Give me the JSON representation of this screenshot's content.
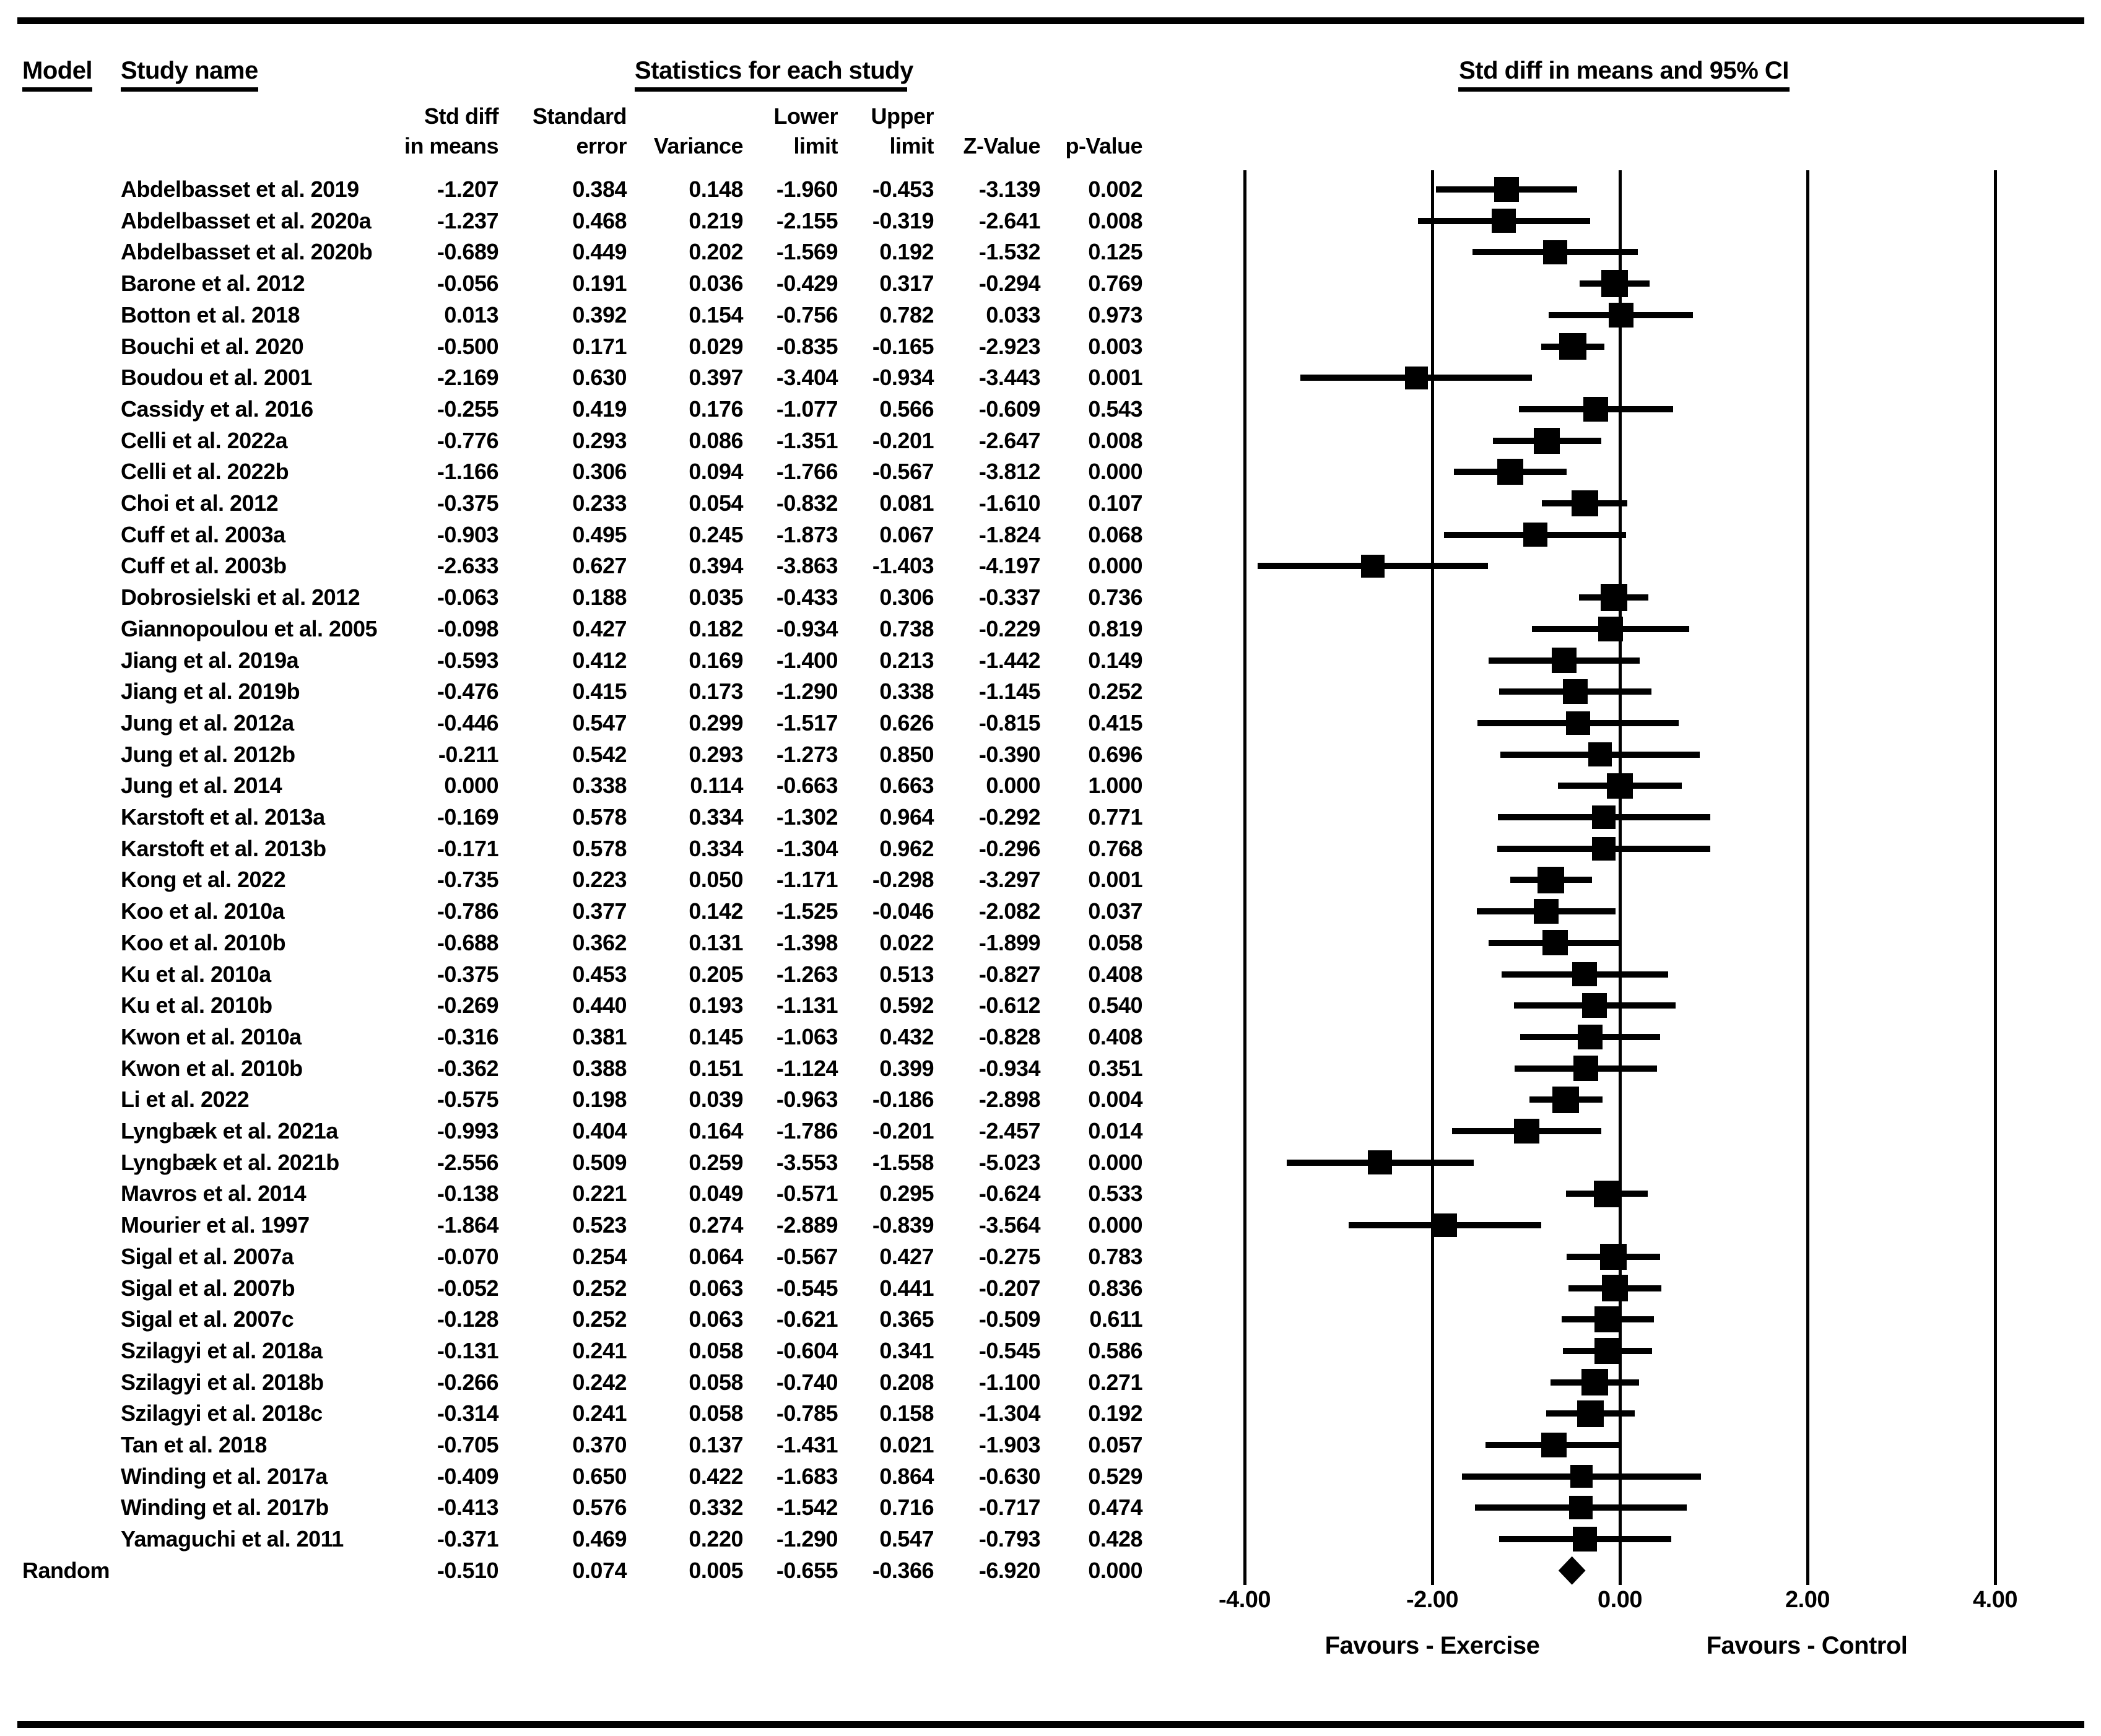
{
  "header": {
    "model": "Model",
    "study_name": "Study name",
    "statistics": "Statistics for each study",
    "plot_title": "Std diff in means and 95% CI"
  },
  "columns": {
    "line1": {
      "std_diff": "Std diff",
      "standard": "Standard",
      "lower": "Lower",
      "upper": "Upper"
    },
    "line2": {
      "in_means": "in means",
      "error": "error",
      "variance": "Variance",
      "limit_lower": "limit",
      "limit_upper": "limit",
      "z_value": "Z-Value",
      "p_value": "p-Value"
    }
  },
  "colors": {
    "ink": "#000000",
    "background": "#ffffff"
  },
  "chart_data": {
    "type": "forest",
    "xlim": [
      -4,
      4
    ],
    "x_ticks": [
      -4,
      -2,
      0,
      2,
      4
    ],
    "x_tick_labels": [
      "-4.00",
      "-2.00",
      "0.00",
      "2.00",
      "4.00"
    ],
    "favours_left": "Favours - Exercise",
    "favours_right": "Favours - Control",
    "grid": "vertical-lines-at-ticks",
    "studies": [
      {
        "name": "Abdelbasset et al. 2019",
        "std_diff": "-1.207",
        "se": "0.384",
        "variance": "0.148",
        "lower": "-1.960",
        "upper": "-0.453",
        "z": "-3.139",
        "p": "0.002"
      },
      {
        "name": "Abdelbasset et al. 2020a",
        "std_diff": "-1.237",
        "se": "0.468",
        "variance": "0.219",
        "lower": "-2.155",
        "upper": "-0.319",
        "z": "-2.641",
        "p": "0.008"
      },
      {
        "name": "Abdelbasset et al. 2020b",
        "std_diff": "-0.689",
        "se": "0.449",
        "variance": "0.202",
        "lower": "-1.569",
        "upper": "0.192",
        "z": "-1.532",
        "p": "0.125"
      },
      {
        "name": "Barone et al. 2012",
        "std_diff": "-0.056",
        "se": "0.191",
        "variance": "0.036",
        "lower": "-0.429",
        "upper": "0.317",
        "z": "-0.294",
        "p": "0.769"
      },
      {
        "name": "Botton et al. 2018",
        "std_diff": "0.013",
        "se": "0.392",
        "variance": "0.154",
        "lower": "-0.756",
        "upper": "0.782",
        "z": "0.033",
        "p": "0.973"
      },
      {
        "name": "Bouchi et al. 2020",
        "std_diff": "-0.500",
        "se": "0.171",
        "variance": "0.029",
        "lower": "-0.835",
        "upper": "-0.165",
        "z": "-2.923",
        "p": "0.003"
      },
      {
        "name": "Boudou et al. 2001",
        "std_diff": "-2.169",
        "se": "0.630",
        "variance": "0.397",
        "lower": "-3.404",
        "upper": "-0.934",
        "z": "-3.443",
        "p": "0.001"
      },
      {
        "name": "Cassidy et al. 2016",
        "std_diff": "-0.255",
        "se": "0.419",
        "variance": "0.176",
        "lower": "-1.077",
        "upper": "0.566",
        "z": "-0.609",
        "p": "0.543"
      },
      {
        "name": "Celli et al. 2022a",
        "std_diff": "-0.776",
        "se": "0.293",
        "variance": "0.086",
        "lower": "-1.351",
        "upper": "-0.201",
        "z": "-2.647",
        "p": "0.008"
      },
      {
        "name": "Celli et al. 2022b",
        "std_diff": "-1.166",
        "se": "0.306",
        "variance": "0.094",
        "lower": "-1.766",
        "upper": "-0.567",
        "z": "-3.812",
        "p": "0.000"
      },
      {
        "name": "Choi et al. 2012",
        "std_diff": "-0.375",
        "se": "0.233",
        "variance": "0.054",
        "lower": "-0.832",
        "upper": "0.081",
        "z": "-1.610",
        "p": "0.107"
      },
      {
        "name": "Cuff et al. 2003a",
        "std_diff": "-0.903",
        "se": "0.495",
        "variance": "0.245",
        "lower": "-1.873",
        "upper": "0.067",
        "z": "-1.824",
        "p": "0.068"
      },
      {
        "name": "Cuff et al. 2003b",
        "std_diff": "-2.633",
        "se": "0.627",
        "variance": "0.394",
        "lower": "-3.863",
        "upper": "-1.403",
        "z": "-4.197",
        "p": "0.000"
      },
      {
        "name": "Dobrosielski et al. 2012",
        "std_diff": "-0.063",
        "se": "0.188",
        "variance": "0.035",
        "lower": "-0.433",
        "upper": "0.306",
        "z": "-0.337",
        "p": "0.736"
      },
      {
        "name": "Giannopoulou et al. 2005",
        "std_diff": "-0.098",
        "se": "0.427",
        "variance": "0.182",
        "lower": "-0.934",
        "upper": "0.738",
        "z": "-0.229",
        "p": "0.819"
      },
      {
        "name": "Jiang et al. 2019a",
        "std_diff": "-0.593",
        "se": "0.412",
        "variance": "0.169",
        "lower": "-1.400",
        "upper": "0.213",
        "z": "-1.442",
        "p": "0.149"
      },
      {
        "name": "Jiang et al. 2019b",
        "std_diff": "-0.476",
        "se": "0.415",
        "variance": "0.173",
        "lower": "-1.290",
        "upper": "0.338",
        "z": "-1.145",
        "p": "0.252"
      },
      {
        "name": "Jung et al. 2012a",
        "std_diff": "-0.446",
        "se": "0.547",
        "variance": "0.299",
        "lower": "-1.517",
        "upper": "0.626",
        "z": "-0.815",
        "p": "0.415"
      },
      {
        "name": "Jung et al. 2012b",
        "std_diff": "-0.211",
        "se": "0.542",
        "variance": "0.293",
        "lower": "-1.273",
        "upper": "0.850",
        "z": "-0.390",
        "p": "0.696"
      },
      {
        "name": "Jung et al. 2014",
        "std_diff": "0.000",
        "se": "0.338",
        "variance": "0.114",
        "lower": "-0.663",
        "upper": "0.663",
        "z": "0.000",
        "p": "1.000"
      },
      {
        "name": "Karstoft et al. 2013a",
        "std_diff": "-0.169",
        "se": "0.578",
        "variance": "0.334",
        "lower": "-1.302",
        "upper": "0.964",
        "z": "-0.292",
        "p": "0.771"
      },
      {
        "name": "Karstoft et al. 2013b",
        "std_diff": "-0.171",
        "se": "0.578",
        "variance": "0.334",
        "lower": "-1.304",
        "upper": "0.962",
        "z": "-0.296",
        "p": "0.768"
      },
      {
        "name": "Kong et al. 2022",
        "std_diff": "-0.735",
        "se": "0.223",
        "variance": "0.050",
        "lower": "-1.171",
        "upper": "-0.298",
        "z": "-3.297",
        "p": "0.001"
      },
      {
        "name": "Koo et al. 2010a",
        "std_diff": "-0.786",
        "se": "0.377",
        "variance": "0.142",
        "lower": "-1.525",
        "upper": "-0.046",
        "z": "-2.082",
        "p": "0.037"
      },
      {
        "name": "Koo et al. 2010b",
        "std_diff": "-0.688",
        "se": "0.362",
        "variance": "0.131",
        "lower": "-1.398",
        "upper": "0.022",
        "z": "-1.899",
        "p": "0.058"
      },
      {
        "name": "Ku et al. 2010a",
        "std_diff": "-0.375",
        "se": "0.453",
        "variance": "0.205",
        "lower": "-1.263",
        "upper": "0.513",
        "z": "-0.827",
        "p": "0.408"
      },
      {
        "name": "Ku et al. 2010b",
        "std_diff": "-0.269",
        "se": "0.440",
        "variance": "0.193",
        "lower": "-1.131",
        "upper": "0.592",
        "z": "-0.612",
        "p": "0.540"
      },
      {
        "name": "Kwon et al. 2010a",
        "std_diff": "-0.316",
        "se": "0.381",
        "variance": "0.145",
        "lower": "-1.063",
        "upper": "0.432",
        "z": "-0.828",
        "p": "0.408"
      },
      {
        "name": "Kwon et al. 2010b",
        "std_diff": "-0.362",
        "se": "0.388",
        "variance": "0.151",
        "lower": "-1.124",
        "upper": "0.399",
        "z": "-0.934",
        "p": "0.351"
      },
      {
        "name": "Li et al. 2022",
        "std_diff": "-0.575",
        "se": "0.198",
        "variance": "0.039",
        "lower": "-0.963",
        "upper": "-0.186",
        "z": "-2.898",
        "p": "0.004"
      },
      {
        "name": "Lyngbæk et al. 2021a",
        "std_diff": "-0.993",
        "se": "0.404",
        "variance": "0.164",
        "lower": "-1.786",
        "upper": "-0.201",
        "z": "-2.457",
        "p": "0.014"
      },
      {
        "name": "Lyngbæk et al. 2021b",
        "std_diff": "-2.556",
        "se": "0.509",
        "variance": "0.259",
        "lower": "-3.553",
        "upper": "-1.558",
        "z": "-5.023",
        "p": "0.000"
      },
      {
        "name": "Mavros et al. 2014",
        "std_diff": "-0.138",
        "se": "0.221",
        "variance": "0.049",
        "lower": "-0.571",
        "upper": "0.295",
        "z": "-0.624",
        "p": "0.533"
      },
      {
        "name": "Mourier et al. 1997",
        "std_diff": "-1.864",
        "se": "0.523",
        "variance": "0.274",
        "lower": "-2.889",
        "upper": "-0.839",
        "z": "-3.564",
        "p": "0.000"
      },
      {
        "name": "Sigal et al. 2007a",
        "std_diff": "-0.070",
        "se": "0.254",
        "variance": "0.064",
        "lower": "-0.567",
        "upper": "0.427",
        "z": "-0.275",
        "p": "0.783"
      },
      {
        "name": "Sigal et al. 2007b",
        "std_diff": "-0.052",
        "se": "0.252",
        "variance": "0.063",
        "lower": "-0.545",
        "upper": "0.441",
        "z": "-0.207",
        "p": "0.836"
      },
      {
        "name": "Sigal et al. 2007c",
        "std_diff": "-0.128",
        "se": "0.252",
        "variance": "0.063",
        "lower": "-0.621",
        "upper": "0.365",
        "z": "-0.509",
        "p": "0.611"
      },
      {
        "name": "Szilagyi et al. 2018a",
        "std_diff": "-0.131",
        "se": "0.241",
        "variance": "0.058",
        "lower": "-0.604",
        "upper": "0.341",
        "z": "-0.545",
        "p": "0.586"
      },
      {
        "name": "Szilagyi et al. 2018b",
        "std_diff": "-0.266",
        "se": "0.242",
        "variance": "0.058",
        "lower": "-0.740",
        "upper": "0.208",
        "z": "-1.100",
        "p": "0.271"
      },
      {
        "name": "Szilagyi et al. 2018c",
        "std_diff": "-0.314",
        "se": "0.241",
        "variance": "0.058",
        "lower": "-0.785",
        "upper": "0.158",
        "z": "-1.304",
        "p": "0.192"
      },
      {
        "name": "Tan et al. 2018",
        "std_diff": "-0.705",
        "se": "0.370",
        "variance": "0.137",
        "lower": "-1.431",
        "upper": "0.021",
        "z": "-1.903",
        "p": "0.057"
      },
      {
        "name": "Winding et al. 2017a",
        "std_diff": "-0.409",
        "se": "0.650",
        "variance": "0.422",
        "lower": "-1.683",
        "upper": "0.864",
        "z": "-0.630",
        "p": "0.529"
      },
      {
        "name": "Winding et al. 2017b",
        "std_diff": "-0.413",
        "se": "0.576",
        "variance": "0.332",
        "lower": "-1.542",
        "upper": "0.716",
        "z": "-0.717",
        "p": "0.474"
      },
      {
        "name": "Yamaguchi et al. 2011",
        "std_diff": "-0.371",
        "se": "0.469",
        "variance": "0.220",
        "lower": "-1.290",
        "upper": "0.547",
        "z": "-0.793",
        "p": "0.428"
      }
    ],
    "summary": {
      "model": "Random",
      "std_diff": "-0.510",
      "se": "0.074",
      "variance": "0.005",
      "lower": "-0.655",
      "upper": "-0.366",
      "z": "-6.920",
      "p": "0.000"
    }
  }
}
